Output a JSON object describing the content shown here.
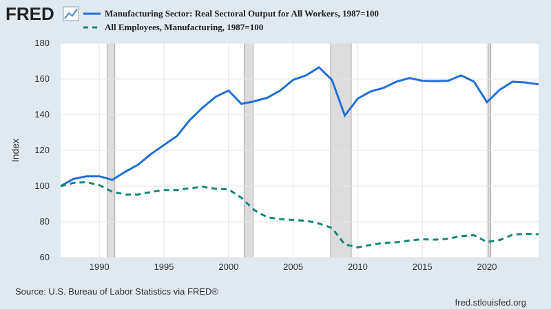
{
  "chart_data": {
    "type": "line",
    "logo": "FRED",
    "ylabel": "Index",
    "source": "Source: U.S. Bureau of Labor Statistics via FRED®",
    "credit": "fred.stlouisfed.org",
    "x": [
      1987,
      1988,
      1989,
      1990,
      1991,
      1992,
      1993,
      1994,
      1995,
      1996,
      1997,
      1998,
      1999,
      2000,
      2001,
      2002,
      2003,
      2004,
      2005,
      2006,
      2007,
      2008,
      2009,
      2010,
      2011,
      2012,
      2013,
      2014,
      2015,
      2016,
      2017,
      2018,
      2019,
      2020,
      2021,
      2022,
      2023,
      2024
    ],
    "series": [
      {
        "name": "Manufacturing Sector: Real Sectoral Output for All Workers, 1987=100",
        "color": "#1f6fd6",
        "dash": false,
        "values": [
          100,
          104,
          105.5,
          105.5,
          103.5,
          108,
          112,
          118,
          123,
          128,
          137,
          144,
          150,
          153.5,
          146,
          147.5,
          149.5,
          153.5,
          159.5,
          162,
          166.5,
          159.5,
          139.5,
          149,
          153,
          155,
          158.5,
          160.5,
          159,
          158.8,
          159,
          162,
          158.5,
          147,
          154,
          158.5,
          158,
          157
        ]
      },
      {
        "name": "All Employees, Manufacturing, 1987=100",
        "color": "#13877a",
        "dash": true,
        "values": [
          100,
          101.8,
          102.2,
          100.5,
          96.8,
          95.3,
          95.3,
          96.7,
          97.8,
          97.8,
          98.8,
          99.6,
          98.5,
          98.2,
          93.4,
          86.5,
          82.5,
          81.5,
          81,
          80.6,
          79,
          76.6,
          67.3,
          65.7,
          67,
          68.2,
          68.5,
          69.5,
          70.2,
          70,
          70.5,
          72,
          72.5,
          68.7,
          69.8,
          72.8,
          73.3,
          73
        ]
      }
    ],
    "recessions": [
      [
        1990.6,
        1991.2
      ],
      [
        2001.2,
        2001.9
      ],
      [
        2007.9,
        2009.5
      ],
      [
        2020.1,
        2020.3
      ]
    ],
    "xlim": [
      1987,
      2024
    ],
    "xticks": [
      1990,
      1995,
      2000,
      2005,
      2010,
      2015,
      2020
    ],
    "ylim": [
      60,
      180
    ],
    "yticks": [
      60,
      80,
      100,
      120,
      140,
      160,
      180
    ],
    "grid": true
  }
}
